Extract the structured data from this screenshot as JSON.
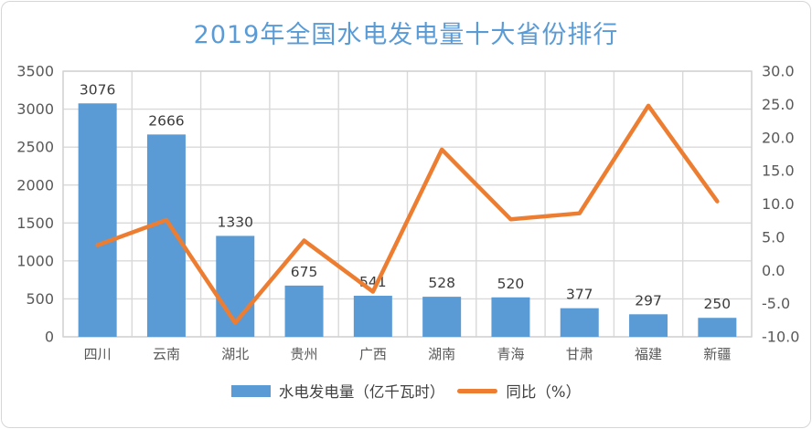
{
  "card": {
    "background": "#FFFFFF",
    "border_color": "#D6D6D6"
  },
  "chart_data": {
    "type": "combo-bar-line",
    "title": "2019年全国水电发电量十大省份排行",
    "title_color": "#5B9BD5",
    "categories": [
      "四川",
      "云南",
      "湖北",
      "贵州",
      "广西",
      "湖南",
      "青海",
      "甘肃",
      "福建",
      "新疆"
    ],
    "series": [
      {
        "name": "水电发电量（亿千瓦时）",
        "type": "bar",
        "axis": "left",
        "color": "#5B9BD5",
        "values": [
          3076,
          2666,
          1330,
          675,
          541,
          528,
          520,
          377,
          297,
          250
        ],
        "data_labels_visible": true
      },
      {
        "name": "同比（%）",
        "type": "line",
        "axis": "right",
        "color": "#ED7D31",
        "values": [
          3.8,
          7.6,
          -7.9,
          4.5,
          -3.2,
          18.2,
          7.7,
          8.6,
          24.8,
          10.4
        ],
        "data_labels_visible": false
      }
    ],
    "left_axis": {
      "min": 0,
      "max": 3500,
      "step": 500,
      "ticks_top_to_bottom": [
        "3500",
        "3000",
        "2500",
        "2000",
        "1500",
        "1000",
        "500",
        "0"
      ]
    },
    "right_axis": {
      "min": -10,
      "max": 30,
      "step": 5,
      "ticks_top_to_bottom": [
        "30.0",
        "25.0",
        "20.0",
        "15.0",
        "10.0",
        "5.0",
        "0.0",
        "-5.0",
        "-10.0"
      ]
    },
    "grid": {
      "horizontal": true,
      "vertical": true,
      "color": "#D9D9D9",
      "border_color": "#D2D2D2"
    },
    "text_colors": {
      "axis_tick": "#595959",
      "bar_label": "#3B3B3B",
      "category": "#595959",
      "legend": "#404040"
    },
    "legend": {
      "position": "bottom"
    }
  }
}
